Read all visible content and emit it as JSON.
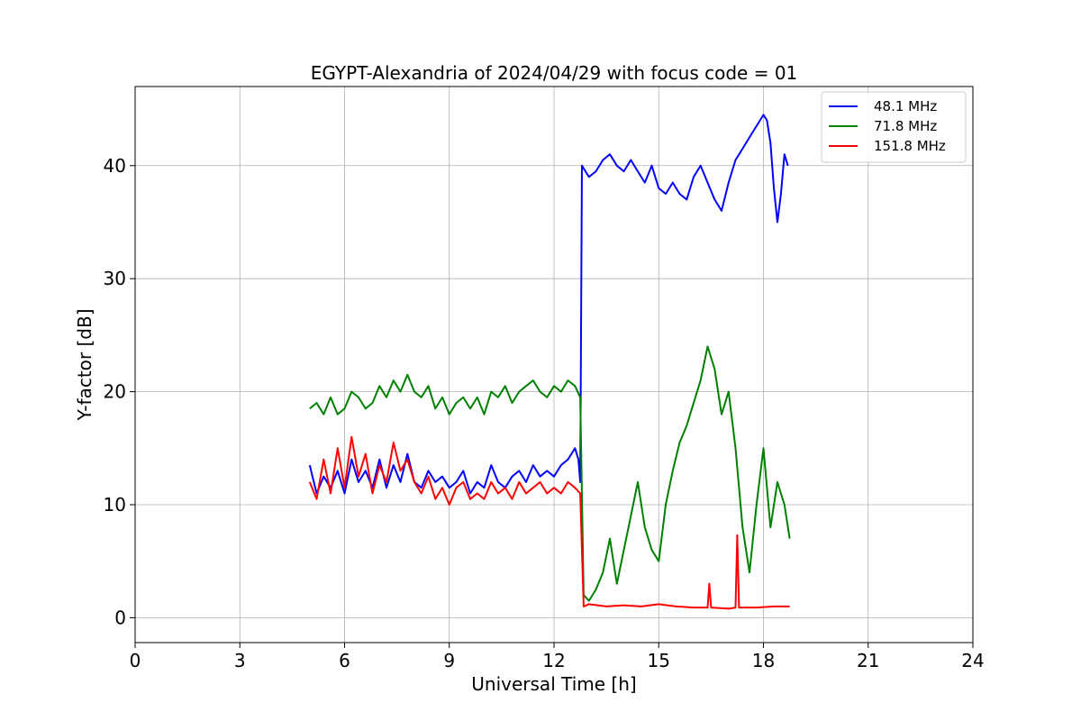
{
  "chart_data": {
    "type": "line",
    "title": "EGYPT-Alexandria of 2024/04/29 with focus code = 01",
    "xlabel": "Universal Time [h]",
    "ylabel": "Y-factor [dB]",
    "xlim": [
      0,
      24
    ],
    "ylim": [
      -2.2,
      47
    ],
    "xticks": [
      0,
      3,
      6,
      9,
      12,
      15,
      18,
      21,
      24
    ],
    "yticks": [
      0,
      10,
      20,
      30,
      40
    ],
    "grid": true,
    "legend_position": "top-right",
    "series": [
      {
        "name": " 48.1 MHz",
        "color": "#0000ff",
        "x": [
          5.0,
          5.2,
          5.4,
          5.6,
          5.8,
          6.0,
          6.2,
          6.4,
          6.6,
          6.8,
          7.0,
          7.2,
          7.4,
          7.6,
          7.8,
          8.0,
          8.2,
          8.4,
          8.6,
          8.8,
          9.0,
          9.2,
          9.4,
          9.6,
          9.8,
          10.0,
          10.2,
          10.4,
          10.6,
          10.8,
          11.0,
          11.2,
          11.4,
          11.6,
          11.8,
          12.0,
          12.2,
          12.4,
          12.6,
          12.7,
          12.75,
          12.8,
          12.9,
          13.0,
          13.2,
          13.4,
          13.6,
          13.8,
          14.0,
          14.2,
          14.4,
          14.6,
          14.8,
          15.0,
          15.2,
          15.4,
          15.6,
          15.8,
          16.0,
          16.2,
          16.4,
          16.6,
          16.8,
          17.0,
          17.2,
          17.4,
          17.6,
          17.8,
          18.0,
          18.1,
          18.2,
          18.3,
          18.4,
          18.5,
          18.6,
          18.7
        ],
        "values": [
          13.5,
          11.0,
          12.5,
          11.5,
          13.0,
          11.0,
          14.0,
          12.0,
          13.0,
          11.5,
          14.0,
          11.5,
          13.5,
          12.0,
          14.5,
          12.0,
          11.5,
          13.0,
          12.0,
          12.5,
          11.5,
          12.0,
          13.0,
          11.0,
          12.0,
          11.5,
          13.5,
          12.0,
          11.5,
          12.5,
          13.0,
          12.0,
          13.5,
          12.5,
          13.0,
          12.5,
          13.5,
          14.0,
          15.0,
          14.0,
          12.0,
          40.0,
          39.5,
          39.0,
          39.5,
          40.5,
          41.0,
          40.0,
          39.5,
          40.5,
          39.5,
          38.5,
          40.0,
          38.0,
          37.5,
          38.5,
          37.5,
          37.0,
          39.0,
          40.0,
          38.5,
          37.0,
          36.0,
          38.5,
          40.5,
          41.5,
          42.5,
          43.5,
          44.5,
          44.0,
          42.0,
          38.0,
          35.0,
          37.5,
          41.0,
          40.0
        ]
      },
      {
        "name": " 71.8 MHz",
        "color": "#008000",
        "x": [
          5.0,
          5.2,
          5.4,
          5.6,
          5.8,
          6.0,
          6.2,
          6.4,
          6.6,
          6.8,
          7.0,
          7.2,
          7.4,
          7.6,
          7.8,
          8.0,
          8.2,
          8.4,
          8.6,
          8.8,
          9.0,
          9.2,
          9.4,
          9.6,
          9.8,
          10.0,
          10.2,
          10.4,
          10.6,
          10.8,
          11.0,
          11.2,
          11.4,
          11.6,
          11.8,
          12.0,
          12.2,
          12.4,
          12.6,
          12.75,
          12.85,
          13.0,
          13.2,
          13.4,
          13.6,
          13.8,
          14.0,
          14.2,
          14.4,
          14.6,
          14.8,
          15.0,
          15.2,
          15.4,
          15.6,
          15.8,
          16.0,
          16.2,
          16.4,
          16.6,
          16.8,
          17.0,
          17.2,
          17.4,
          17.6,
          17.8,
          18.0,
          18.2,
          18.4,
          18.6,
          18.75
        ],
        "values": [
          18.5,
          19.0,
          18.0,
          19.5,
          18.0,
          18.5,
          20.0,
          19.5,
          18.5,
          19.0,
          20.5,
          19.5,
          21.0,
          20.0,
          21.5,
          20.0,
          19.5,
          20.5,
          18.5,
          19.5,
          18.0,
          19.0,
          19.5,
          18.5,
          19.5,
          18.0,
          20.0,
          19.5,
          20.5,
          19.0,
          20.0,
          20.5,
          21.0,
          20.0,
          19.5,
          20.5,
          20.0,
          21.0,
          20.5,
          19.5,
          2.0,
          1.5,
          2.5,
          4.0,
          7.0,
          3.0,
          6.0,
          9.0,
          12.0,
          8.0,
          6.0,
          5.0,
          10.0,
          13.0,
          15.5,
          17.0,
          19.0,
          21.0,
          24.0,
          22.0,
          18.0,
          20.0,
          15.0,
          8.0,
          4.0,
          10.0,
          15.0,
          8.0,
          12.0,
          10.0,
          7.0
        ]
      },
      {
        "name": "151.8 MHz",
        "color": "#ff0000",
        "x": [
          5.0,
          5.2,
          5.4,
          5.6,
          5.8,
          6.0,
          6.2,
          6.4,
          6.6,
          6.8,
          7.0,
          7.2,
          7.4,
          7.6,
          7.8,
          8.0,
          8.2,
          8.4,
          8.6,
          8.8,
          9.0,
          9.2,
          9.4,
          9.6,
          9.8,
          10.0,
          10.2,
          10.4,
          10.6,
          10.8,
          11.0,
          11.2,
          11.4,
          11.6,
          11.8,
          12.0,
          12.2,
          12.4,
          12.6,
          12.75,
          12.85,
          13.0,
          13.5,
          14.0,
          14.5,
          15.0,
          15.5,
          16.0,
          16.4,
          16.45,
          16.5,
          17.0,
          17.2,
          17.25,
          17.3,
          17.8,
          18.3,
          18.75
        ],
        "values": [
          12.0,
          10.5,
          14.0,
          11.0,
          15.0,
          11.5,
          16.0,
          12.5,
          14.5,
          11.0,
          13.5,
          12.0,
          15.5,
          13.0,
          14.0,
          12.0,
          11.0,
          12.5,
          10.5,
          11.5,
          10.0,
          11.5,
          12.0,
          10.5,
          11.0,
          10.5,
          12.0,
          11.0,
          11.5,
          10.5,
          12.0,
          11.0,
          11.5,
          12.0,
          11.0,
          11.5,
          11.0,
          12.0,
          11.5,
          11.0,
          1.0,
          1.2,
          1.0,
          1.1,
          1.0,
          1.2,
          1.0,
          0.9,
          0.9,
          3.0,
          0.9,
          0.8,
          0.9,
          7.3,
          0.9,
          0.9,
          1.0,
          1.0
        ]
      }
    ]
  }
}
